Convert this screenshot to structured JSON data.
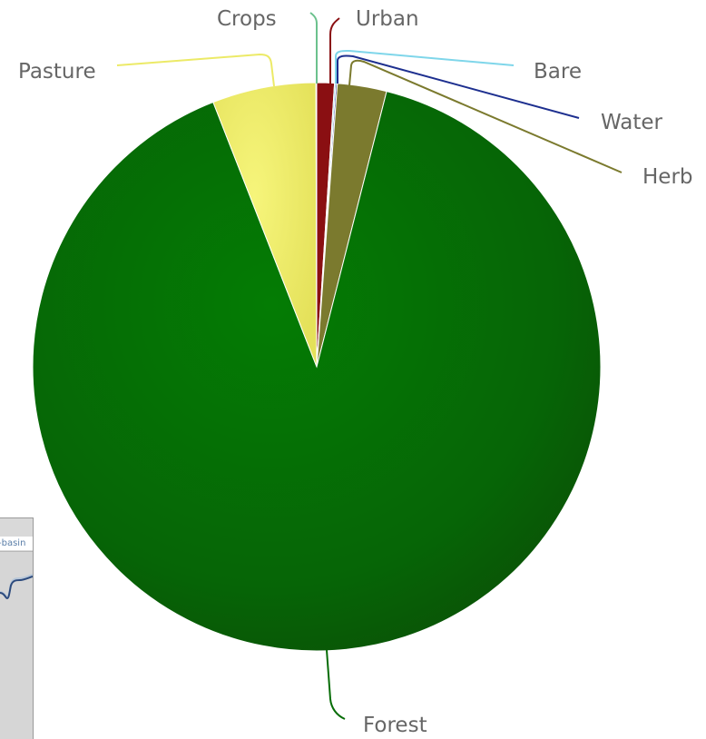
{
  "chart_data": {
    "type": "pie",
    "title": "",
    "slices": [
      {
        "name": "Urban",
        "value": 1.0,
        "color": "#8a0f12"
      },
      {
        "name": "Bare",
        "value": 0.08,
        "color": "#7fd6ea"
      },
      {
        "name": "Water",
        "value": 0.08,
        "color": "#1d2f8f"
      },
      {
        "name": "Herb",
        "value": 2.8,
        "color": "#7b7a2e"
      },
      {
        "name": "Forest",
        "value": 90.1,
        "color": "#066c06"
      },
      {
        "name": "Pasture",
        "value": 5.9,
        "color": "#ecea67"
      },
      {
        "name": "Crops",
        "value": 0.04,
        "color": "#6bc18d"
      }
    ],
    "labels_outside": true,
    "legend": false
  },
  "inset": {
    "label": "-basin"
  }
}
